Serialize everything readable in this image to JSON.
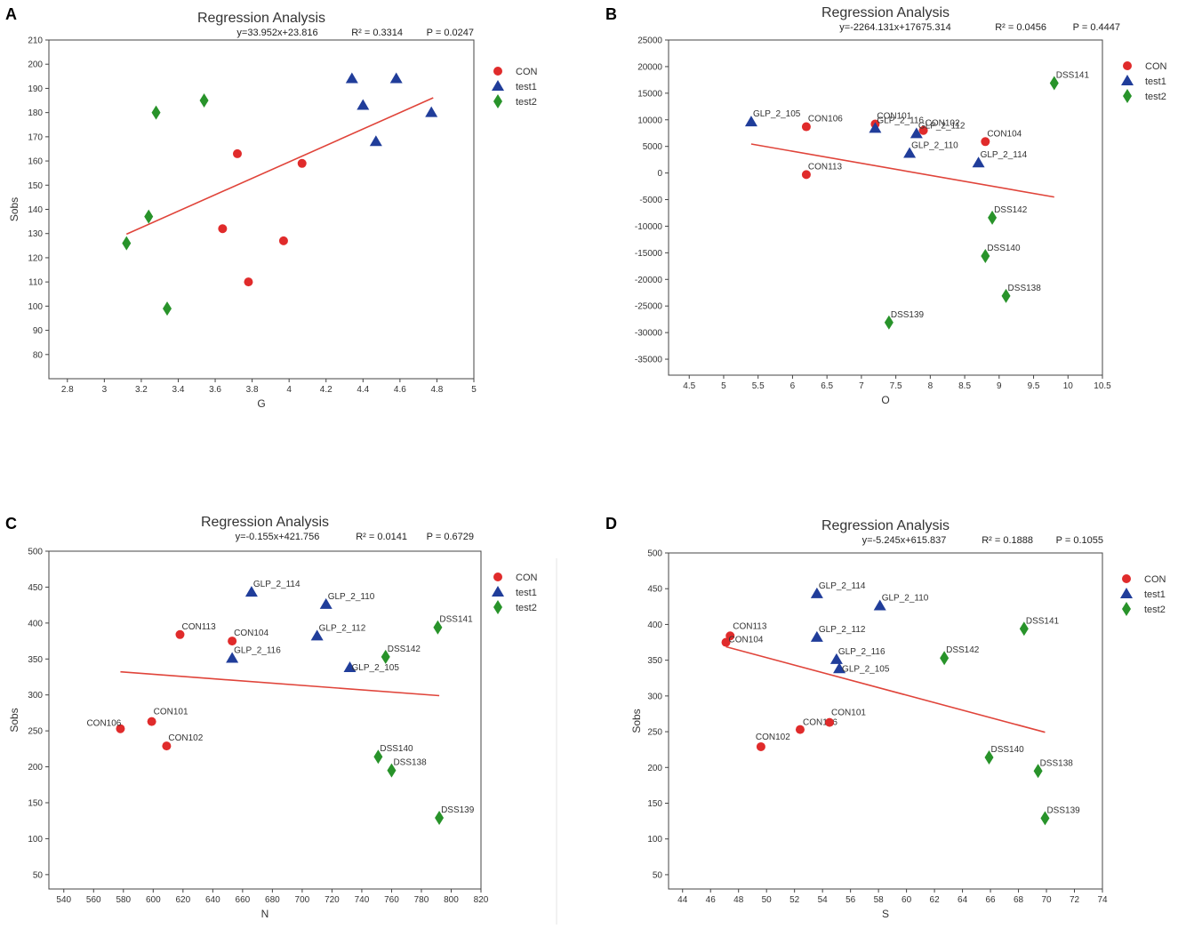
{
  "colors": {
    "CON": "#e02b2b",
    "test1": "#203d9a",
    "test2": "#28932a",
    "regression": "#e0443a"
  },
  "legend": [
    {
      "name": "CON",
      "marker": "circle"
    },
    {
      "name": "test1",
      "marker": "triangle"
    },
    {
      "name": "test2",
      "marker": "diamond"
    }
  ],
  "chart_data": [
    {
      "panel": "A",
      "type": "scatter",
      "title": "Regression Analysis",
      "equation": "y=33.952x+23.816",
      "r2": "R² = 0.3314",
      "p": "P = 0.0247",
      "xlabel": "G",
      "ylabel": "Sobs",
      "xlim": [
        2.7,
        5
      ],
      "ylim": [
        70,
        210
      ],
      "xticks": [
        2.8,
        3,
        3.2,
        3.4,
        3.6,
        3.8,
        4,
        4.2,
        4.4,
        4.6,
        4.8,
        5
      ],
      "yticks": [
        80,
        90,
        100,
        110,
        120,
        130,
        140,
        150,
        160,
        170,
        180,
        190,
        200,
        210
      ],
      "slope": 33.952,
      "intercept": 23.816,
      "line_x": [
        3.12,
        4.78
      ],
      "series": [
        {
          "name": "CON",
          "points": [
            [
              3.72,
              163
            ],
            [
              4.07,
              159
            ],
            [
              3.64,
              132
            ],
            [
              3.97,
              127
            ],
            [
              3.78,
              110
            ]
          ]
        },
        {
          "name": "test1",
          "points": [
            [
              4.34,
              194
            ],
            [
              4.58,
              194
            ],
            [
              4.4,
              183
            ],
            [
              4.77,
              180
            ],
            [
              4.47,
              168
            ]
          ]
        },
        {
          "name": "test2",
          "points": [
            [
              3.54,
              185
            ],
            [
              3.28,
              180
            ],
            [
              3.24,
              137
            ],
            [
              3.12,
              126
            ],
            [
              3.34,
              99
            ]
          ]
        }
      ]
    },
    {
      "panel": "B",
      "type": "scatter",
      "title": "Regression Analysis",
      "equation": "y=-2264.131x+17675.314",
      "r2": "R² = 0.0456",
      "p": "P = 0.4447",
      "xlabel": "O",
      "ylabel": "",
      "xlim": [
        4.2,
        10.5
      ],
      "ylim": [
        -38000,
        25000
      ],
      "xticks": [
        4.5,
        5,
        5.5,
        6,
        6.5,
        7,
        7.5,
        8,
        8.5,
        9,
        9.5,
        10,
        10.5
      ],
      "yticks": [
        -35000,
        -30000,
        -25000,
        -20000,
        -15000,
        -10000,
        -5000,
        0,
        5000,
        10000,
        15000,
        20000,
        25000
      ],
      "slope": -2264.131,
      "intercept": 17675.314,
      "line_x": [
        5.4,
        9.8
      ],
      "series": [
        {
          "name": "CON",
          "points": [
            [
              6.2,
              8700,
              "CON106"
            ],
            [
              7.2,
              9200,
              "CON101"
            ],
            [
              7.9,
              8000,
              "CON102"
            ],
            [
              8.8,
              5900,
              "CON104"
            ],
            [
              6.2,
              -300,
              "CON113"
            ]
          ]
        },
        {
          "name": "test1",
          "points": [
            [
              5.4,
              9600,
              "GLP_2_105"
            ],
            [
              7.2,
              8400,
              "GLP_2_116"
            ],
            [
              7.8,
              7400,
              "GLP_2_112"
            ],
            [
              7.7,
              3700,
              "GLP_2_110"
            ],
            [
              8.7,
              1900,
              "GLP_2_114"
            ]
          ]
        },
        {
          "name": "test2",
          "points": [
            [
              9.8,
              16900,
              "DSS141"
            ],
            [
              8.9,
              -8400,
              "DSS142"
            ],
            [
              8.8,
              -15600,
              "DSS140"
            ],
            [
              9.1,
              -23100,
              "DSS138"
            ],
            [
              7.4,
              -28100,
              "DSS139"
            ]
          ]
        }
      ]
    },
    {
      "panel": "C",
      "type": "scatter",
      "title": "Regression Analysis",
      "equation": "y=-0.155x+421.756",
      "r2": "R² = 0.0141",
      "p": "P = 0.6729",
      "xlabel": "N",
      "ylabel": "Sobs",
      "xlim": [
        530,
        820
      ],
      "ylim": [
        30,
        500
      ],
      "xticks": [
        540,
        560,
        580,
        600,
        620,
        640,
        660,
        680,
        700,
        720,
        740,
        760,
        780,
        800,
        820
      ],
      "yticks": [
        50,
        100,
        150,
        200,
        250,
        300,
        350,
        400,
        450,
        500
      ],
      "slope": -0.155,
      "intercept": 421.756,
      "line_x": [
        578,
        792
      ],
      "series": [
        {
          "name": "CON",
          "points": [
            [
              618,
              384,
              "CON113"
            ],
            [
              653,
              375,
              "CON104"
            ],
            [
              578,
              253,
              "CON106"
            ],
            [
              599,
              263,
              "CON101"
            ],
            [
              609,
              229,
              "CON102"
            ]
          ]
        },
        {
          "name": "test1",
          "points": [
            [
              666,
              443,
              "GLP_2_114"
            ],
            [
              716,
              426,
              "GLP_2_110"
            ],
            [
              710,
              382,
              "GLP_2_112"
            ],
            [
              653,
              351,
              "GLP_2_116"
            ],
            [
              732,
              338,
              "GLP_2_105"
            ]
          ]
        },
        {
          "name": "test2",
          "points": [
            [
              791,
              394,
              "DSS141"
            ],
            [
              756,
              353,
              "DSS142"
            ],
            [
              751,
              214,
              "DSS140"
            ],
            [
              760,
              195,
              "DSS138"
            ],
            [
              792,
              129,
              "DSS139"
            ]
          ]
        }
      ]
    },
    {
      "panel": "D",
      "type": "scatter",
      "title": "Regression Analysis",
      "equation": "y=-5.245x+615.837",
      "r2": "R² = 0.1888",
      "p": "P = 0.1055",
      "xlabel": "S",
      "ylabel": "Sobs",
      "xlim": [
        43,
        74
      ],
      "ylim": [
        30,
        500
      ],
      "xticks": [
        44,
        46,
        48,
        50,
        52,
        54,
        56,
        58,
        60,
        62,
        64,
        66,
        68,
        70,
        72,
        74
      ],
      "yticks": [
        50,
        100,
        150,
        200,
        250,
        300,
        350,
        400,
        450,
        500
      ],
      "slope": -5.245,
      "intercept": 615.837,
      "line_x": [
        47.1,
        69.9
      ],
      "series": [
        {
          "name": "CON",
          "points": [
            [
              47.4,
              384,
              "CON113"
            ],
            [
              47.1,
              375,
              "CON104"
            ],
            [
              52.4,
              253,
              "CON106"
            ],
            [
              54.5,
              263,
              "CON101"
            ],
            [
              49.6,
              229,
              "CON102"
            ]
          ]
        },
        {
          "name": "test1",
          "points": [
            [
              53.6,
              443,
              "GLP_2_114"
            ],
            [
              58.1,
              426,
              "GLP_2_110"
            ],
            [
              53.6,
              382,
              "GLP_2_112"
            ],
            [
              55.0,
              351,
              "GLP_2_116"
            ],
            [
              55.2,
              338,
              "GLP_2_105"
            ]
          ]
        },
        {
          "name": "test2",
          "points": [
            [
              68.4,
              394,
              "DSS141"
            ],
            [
              62.7,
              353,
              "DSS142"
            ],
            [
              65.9,
              214,
              "DSS140"
            ],
            [
              69.4,
              195,
              "DSS138"
            ],
            [
              69.9,
              129,
              "DSS139"
            ]
          ]
        }
      ]
    }
  ]
}
